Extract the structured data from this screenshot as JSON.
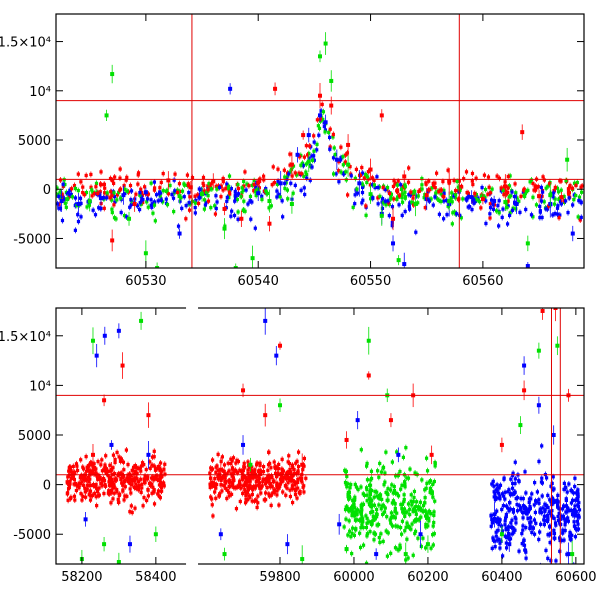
{
  "colors": {
    "red_series": "#ff0000",
    "green_series": "#00e000",
    "blue_series": "#0000ff",
    "reference_lines": "#e00000"
  },
  "chart_data": [
    {
      "type": "scatter",
      "title": "",
      "xlabel": "",
      "ylabel": "",
      "xlim": [
        60522,
        60569
      ],
      "ylim": [
        -8000,
        17800
      ],
      "xticks": [
        60530,
        60540,
        60550,
        60560
      ],
      "yticks": [
        -5000,
        0,
        5000,
        10000,
        15000
      ],
      "ytick_labels": [
        "-5000",
        "0",
        "5000",
        "10⁴",
        "1.5×10⁴"
      ],
      "hlines": [
        1000,
        9000
      ],
      "vlines": [
        60534.1,
        60557.9
      ],
      "grid": false,
      "legend": "none",
      "series": [
        {
          "color": "blue",
          "points": [
            [
              60522.5,
              -1200
            ],
            [
              60524,
              -1500
            ],
            [
              60526,
              -900
            ],
            [
              60528,
              -600
            ],
            [
              60530,
              -300
            ],
            [
              60533,
              -4500
            ],
            [
              60537.5,
              10200
            ],
            [
              60538,
              -600
            ],
            [
              60540,
              -400
            ],
            [
              60542,
              600
            ],
            [
              60543.5,
              3500
            ],
            [
              60544.5,
              5500
            ],
            [
              60545.5,
              7500
            ],
            [
              60546,
              6800
            ],
            [
              60547,
              3000
            ],
            [
              60549,
              600
            ],
            [
              60551,
              -2500
            ],
            [
              60552,
              -5500
            ],
            [
              60553,
              -7600
            ],
            [
              60555,
              -1000
            ],
            [
              60557,
              -1500
            ],
            [
              60559,
              -800
            ],
            [
              60561,
              -1200
            ],
            [
              60563,
              -1500
            ],
            [
              60564,
              -7800
            ],
            [
              60566,
              -1500
            ],
            [
              60568,
              -4500
            ]
          ]
        },
        {
          "color": "green",
          "points": [
            [
              60523,
              -1000
            ],
            [
              60525,
              -1200
            ],
            [
              60526.5,
              7500
            ],
            [
              60527,
              11700
            ],
            [
              60528.5,
              -3000
            ],
            [
              60530,
              -6500
            ],
            [
              60531,
              -8000
            ],
            [
              60533,
              -700
            ],
            [
              60535,
              -500
            ],
            [
              60537,
              -4000
            ],
            [
              60538,
              -8000
            ],
            [
              60539.5,
              -7000
            ],
            [
              60541,
              -1200
            ],
            [
              60543,
              -1500
            ],
            [
              60544.5,
              2800
            ],
            [
              60545.5,
              13500
            ],
            [
              60546,
              14800
            ],
            [
              60546.5,
              11000
            ],
            [
              60548,
              2500
            ],
            [
              60550,
              -500
            ],
            [
              60551,
              -2700
            ],
            [
              60552.5,
              -7200
            ],
            [
              60554,
              -1500
            ],
            [
              60557,
              -1200
            ],
            [
              60560,
              -700
            ],
            [
              60562,
              -1300
            ],
            [
              60564,
              -5500
            ],
            [
              60566,
              -600
            ],
            [
              60567.5,
              3000
            ]
          ]
        },
        {
          "color": "red",
          "points": [
            [
              60527,
              -5200
            ],
            [
              60529,
              -1500
            ],
            [
              60532,
              900
            ],
            [
              60534,
              200
            ],
            [
              60536,
              800
            ],
            [
              60537,
              -2000
            ],
            [
              60538.5,
              -3000
            ],
            [
              60540,
              700
            ],
            [
              60541,
              -3500
            ],
            [
              60541.5,
              10200
            ],
            [
              60543,
              2500
            ],
            [
              60544,
              5500
            ],
            [
              60545.5,
              9500
            ],
            [
              60546.5,
              8500
            ],
            [
              60548,
              4500
            ],
            [
              60550,
              2000
            ],
            [
              60551,
              7500
            ],
            [
              60552,
              -3000
            ],
            [
              60553,
              1300
            ],
            [
              60555,
              -600
            ],
            [
              60557,
              800
            ],
            [
              60560,
              -1000
            ],
            [
              60562,
              300
            ],
            [
              60563.5,
              5800
            ],
            [
              60565,
              -700
            ],
            [
              60567,
              -800
            ]
          ]
        }
      ]
    },
    {
      "type": "scatter",
      "title": "",
      "xlabel": "",
      "ylabel": "",
      "xlim": [
        58130,
        60622
      ],
      "ylim": [
        -8000,
        17800
      ],
      "xticks": [
        58200,
        58400,
        59800,
        60000,
        60200,
        60400,
        60600
      ],
      "yticks": [
        -5000,
        0,
        5000,
        10000,
        15000
      ],
      "ytick_labels": [
        "-5000",
        "0",
        "5000",
        "10⁴",
        "1.5×10⁴"
      ],
      "hlines": [
        1000,
        9000
      ],
      "vlines": [
        60534.1,
        60557.9
      ],
      "grid": false,
      "legend": "none",
      "x_axis_break_after": 58460,
      "x_axis_break_resume": 59600,
      "series": [
        {
          "color": "blue",
          "points": [
            [
              58210,
              -3500
            ],
            [
              58240,
              13000
            ],
            [
              58262,
              15000
            ],
            [
              58280,
              4000
            ],
            [
              58300,
              15500
            ],
            [
              58330,
              -6000
            ],
            [
              58380,
              3000
            ],
            [
              59640,
              -5000
            ],
            [
              59700,
              4000
            ],
            [
              59760,
              16500
            ],
            [
              59790,
              13000
            ],
            [
              59820,
              -6000
            ],
            [
              59960,
              -4000
            ],
            [
              60010,
              6500
            ],
            [
              60060,
              -7000
            ],
            [
              60120,
              3000
            ],
            [
              60180,
              -5000
            ],
            [
              60380,
              -3000
            ],
            [
              60420,
              -6000
            ],
            [
              60460,
              12000
            ],
            [
              60500,
              8000
            ],
            [
              60540,
              5000
            ],
            [
              60580,
              -7000
            ]
          ]
        },
        {
          "color": "green",
          "points": [
            [
              58200,
              -7500
            ],
            [
              58230,
              14500
            ],
            [
              58260,
              -6000
            ],
            [
              58300,
              -7800
            ],
            [
              58360,
              16500
            ],
            [
              58400,
              -5000
            ],
            [
              59650,
              -7000
            ],
            [
              59720,
              2000
            ],
            [
              59800,
              8000
            ],
            [
              59860,
              -7500
            ],
            [
              59980,
              -6500
            ],
            [
              60040,
              14500
            ],
            [
              60090,
              9000
            ],
            [
              60140,
              -7000
            ],
            [
              60200,
              -6000
            ],
            [
              60400,
              -5000
            ],
            [
              60450,
              6000
            ],
            [
              60500,
              13500
            ],
            [
              60550,
              14000
            ],
            [
              60590,
              -7000
            ]
          ]
        },
        {
          "color": "red",
          "points": [
            [
              58230,
              3000
            ],
            [
              58260,
              8500
            ],
            [
              58280,
              1500
            ],
            [
              58310,
              12000
            ],
            [
              58380,
              7000
            ],
            [
              59640,
              1500
            ],
            [
              59700,
              9500
            ],
            [
              59760,
              7000
            ],
            [
              59800,
              14000
            ],
            [
              59860,
              2000
            ],
            [
              59980,
              4500
            ],
            [
              60040,
              11000
            ],
            [
              60100,
              6500
            ],
            [
              60160,
              9000
            ],
            [
              60210,
              3000
            ],
            [
              60400,
              4000
            ],
            [
              60460,
              9500
            ],
            [
              60510,
              17500
            ],
            [
              60545,
              17800
            ],
            [
              60580,
              9000
            ]
          ]
        }
      ]
    }
  ]
}
